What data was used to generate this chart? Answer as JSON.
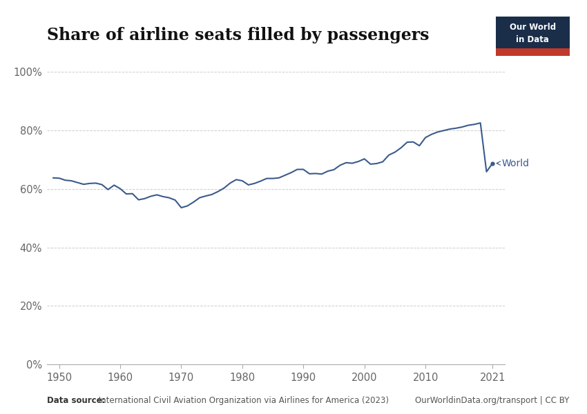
{
  "title": "Share of airline seats filled by passengers",
  "line_color": "#3a5a8c",
  "background_color": "#ffffff",
  "grid_color": "#cccccc",
  "label_color": "#666666",
  "annotation_label": "World",
  "ylim": [
    0,
    1.02
  ],
  "yticks": [
    0,
    0.2,
    0.4,
    0.6,
    0.8,
    1.0
  ],
  "ytick_labels": [
    "0%",
    "20%",
    "40%",
    "60%",
    "80%",
    "100%"
  ],
  "xlim": [
    1948,
    2023
  ],
  "xticks": [
    1950,
    1960,
    1970,
    1980,
    1990,
    2000,
    2010,
    2021
  ],
  "datasource_bold": "Data source:",
  "datasource_rest": " International Civil Aviation Organization via Airlines for America (2023)",
  "datasource_right": "OurWorldinData.org/transport | CC BY",
  "owid_logo_dark": "#1a2e4a",
  "owid_logo_red": "#c0392b",
  "years": [
    1949,
    1950,
    1951,
    1952,
    1953,
    1954,
    1955,
    1956,
    1957,
    1958,
    1959,
    1960,
    1961,
    1962,
    1963,
    1964,
    1965,
    1966,
    1967,
    1968,
    1969,
    1970,
    1971,
    1972,
    1973,
    1974,
    1975,
    1976,
    1977,
    1978,
    1979,
    1980,
    1981,
    1982,
    1983,
    1984,
    1985,
    1986,
    1987,
    1988,
    1989,
    1990,
    1991,
    1992,
    1993,
    1994,
    1995,
    1996,
    1997,
    1998,
    1999,
    2000,
    2001,
    2002,
    2003,
    2004,
    2005,
    2006,
    2007,
    2008,
    2009,
    2010,
    2011,
    2012,
    2013,
    2014,
    2015,
    2016,
    2017,
    2018,
    2019,
    2020,
    2021
  ],
  "values": [
    0.638,
    0.637,
    0.63,
    0.628,
    0.622,
    0.616,
    0.619,
    0.62,
    0.615,
    0.598,
    0.613,
    0.601,
    0.583,
    0.584,
    0.563,
    0.567,
    0.575,
    0.58,
    0.574,
    0.57,
    0.562,
    0.536,
    0.542,
    0.555,
    0.57,
    0.576,
    0.581,
    0.591,
    0.603,
    0.62,
    0.632,
    0.628,
    0.614,
    0.619,
    0.627,
    0.636,
    0.636,
    0.638,
    0.647,
    0.656,
    0.667,
    0.667,
    0.652,
    0.653,
    0.651,
    0.661,
    0.666,
    0.681,
    0.69,
    0.688,
    0.694,
    0.703,
    0.685,
    0.687,
    0.693,
    0.716,
    0.726,
    0.741,
    0.76,
    0.761,
    0.748,
    0.776,
    0.787,
    0.795,
    0.8,
    0.805,
    0.808,
    0.812,
    0.818,
    0.821,
    0.826,
    0.659,
    0.688
  ]
}
